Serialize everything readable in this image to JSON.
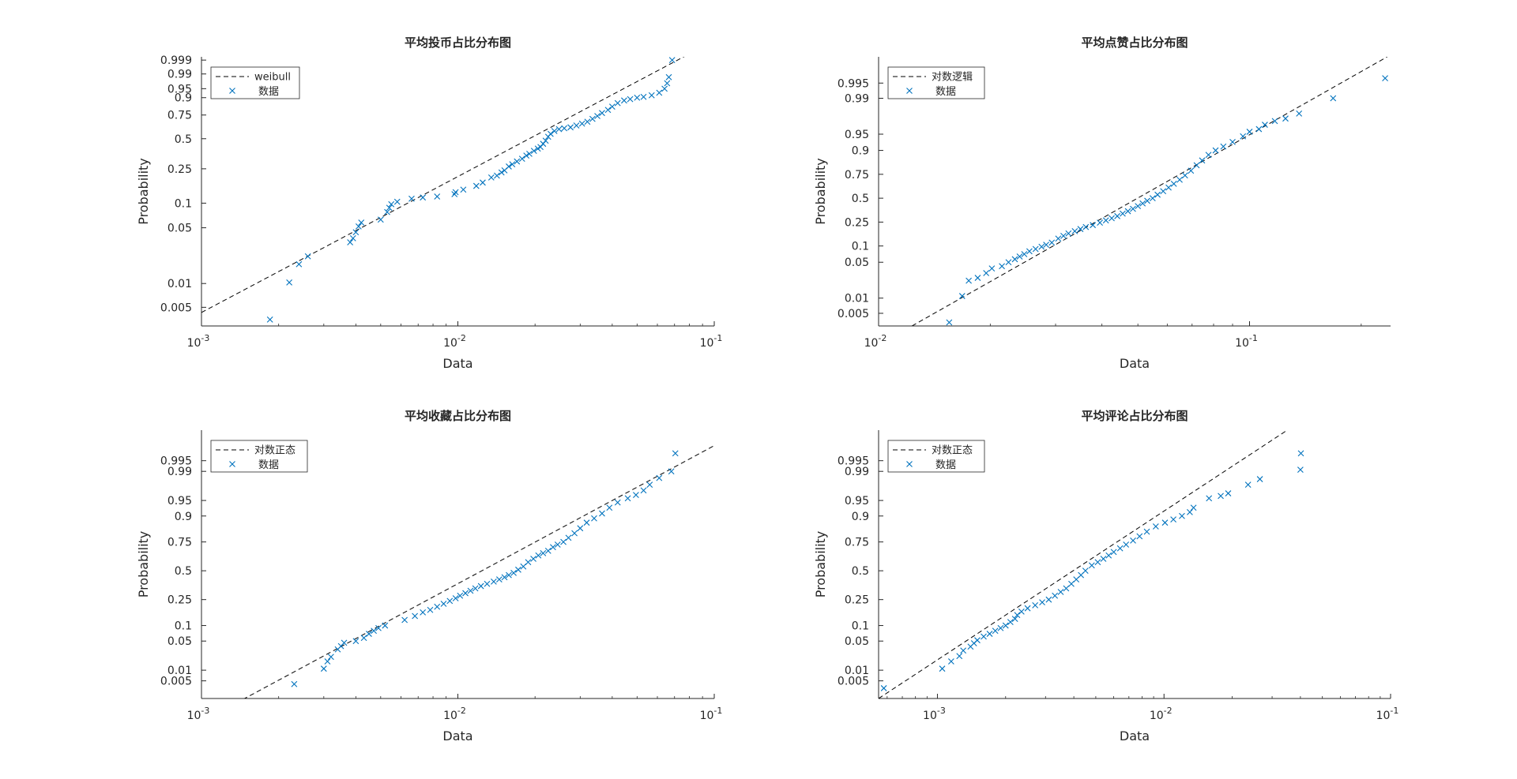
{
  "chart_data": [
    {
      "type": "scatter",
      "title": "平均投币占比分布图",
      "xlabel": "Data",
      "ylabel": "Probability",
      "xscale": "log",
      "xlim": [
        0.001,
        0.1
      ],
      "xticks": [
        {
          "v": 0.001,
          "base": "10",
          "exp": "-3"
        },
        {
          "v": 0.01,
          "base": "10",
          "exp": "-2"
        },
        {
          "v": 0.1,
          "base": "10",
          "exp": "-1"
        }
      ],
      "yscale": "weibull",
      "yticks": [
        "0.005",
        "0.01",
        "0.05",
        "0.1",
        "0.25",
        "0.5",
        "0.75",
        "0.9",
        "0.95",
        "0.99",
        "0.999"
      ],
      "legend": {
        "position": "top-left",
        "fit_label": "weibull",
        "data_label": "数据"
      },
      "fit_line": [
        [
          0.001,
          0.0043
        ],
        [
          0.085,
          0.9999
        ]
      ],
      "points": [
        [
          0.00185,
          0.0035
        ],
        [
          0.0022,
          0.0103
        ],
        [
          0.0024,
          0.0175
        ],
        [
          0.0026,
          0.022
        ],
        [
          0.0038,
          0.033
        ],
        [
          0.0039,
          0.037
        ],
        [
          0.004,
          0.044
        ],
        [
          0.0041,
          0.052
        ],
        [
          0.0042,
          0.058
        ],
        [
          0.005,
          0.063
        ],
        [
          0.0053,
          0.078
        ],
        [
          0.0054,
          0.088
        ],
        [
          0.0055,
          0.097
        ],
        [
          0.0058,
          0.104
        ],
        [
          0.0066,
          0.113
        ],
        [
          0.0073,
          0.117
        ],
        [
          0.0083,
          0.12
        ],
        [
          0.0097,
          0.128
        ],
        [
          0.0098,
          0.135
        ],
        [
          0.0105,
          0.145
        ],
        [
          0.0118,
          0.16
        ],
        [
          0.0125,
          0.175
        ],
        [
          0.0135,
          0.2
        ],
        [
          0.0142,
          0.21
        ],
        [
          0.0148,
          0.228
        ],
        [
          0.0152,
          0.24
        ],
        [
          0.0158,
          0.265
        ],
        [
          0.0163,
          0.28
        ],
        [
          0.017,
          0.3
        ],
        [
          0.0178,
          0.32
        ],
        [
          0.0185,
          0.345
        ],
        [
          0.019,
          0.36
        ],
        [
          0.0198,
          0.385
        ],
        [
          0.0205,
          0.405
        ],
        [
          0.021,
          0.42
        ],
        [
          0.0215,
          0.45
        ],
        [
          0.022,
          0.48
        ],
        [
          0.0225,
          0.52
        ],
        [
          0.023,
          0.55
        ],
        [
          0.0238,
          0.58
        ],
        [
          0.0248,
          0.6
        ],
        [
          0.026,
          0.61
        ],
        [
          0.0275,
          0.62
        ],
        [
          0.029,
          0.64
        ],
        [
          0.0305,
          0.66
        ],
        [
          0.032,
          0.68
        ],
        [
          0.0335,
          0.71
        ],
        [
          0.035,
          0.74
        ],
        [
          0.0365,
          0.77
        ],
        [
          0.0385,
          0.8
        ],
        [
          0.04,
          0.83
        ],
        [
          0.042,
          0.86
        ],
        [
          0.0445,
          0.88
        ],
        [
          0.047,
          0.89
        ],
        [
          0.05,
          0.9
        ],
        [
          0.053,
          0.905
        ],
        [
          0.057,
          0.915
        ],
        [
          0.061,
          0.93
        ],
        [
          0.064,
          0.95
        ],
        [
          0.0655,
          0.97
        ],
        [
          0.0665,
          0.985
        ],
        [
          0.0685,
          0.999
        ]
      ]
    },
    {
      "type": "scatter",
      "title": "平均点赞占比分布图",
      "xlabel": "Data",
      "ylabel": "Probability",
      "xscale": "log",
      "xlim": [
        0.01,
        0.24
      ],
      "xticks": [
        {
          "v": 0.01,
          "base": "10",
          "exp": "-2"
        },
        {
          "v": 0.1,
          "base": "10",
          "exp": "-1"
        }
      ],
      "yscale": "logistic",
      "yticks": [
        "0.005",
        "0.01",
        "0.05",
        "0.1",
        "0.25",
        "0.5",
        "0.75",
        "0.9",
        "0.95",
        "0.99",
        "0.995"
      ],
      "legend": {
        "position": "top-left",
        "fit_label": "对数逻辑",
        "data_label": "数据"
      },
      "fit_line": [
        [
          0.0123,
          0.0028
        ],
        [
          0.235,
          0.9985
        ]
      ],
      "points": [
        [
          0.0155,
          0.0033
        ],
        [
          0.0168,
          0.011
        ],
        [
          0.0175,
          0.022
        ],
        [
          0.0185,
          0.025
        ],
        [
          0.0195,
          0.031
        ],
        [
          0.0202,
          0.038
        ],
        [
          0.0215,
          0.042
        ],
        [
          0.0224,
          0.05
        ],
        [
          0.0233,
          0.057
        ],
        [
          0.024,
          0.064
        ],
        [
          0.0247,
          0.071
        ],
        [
          0.0255,
          0.08
        ],
        [
          0.0265,
          0.088
        ],
        [
          0.0275,
          0.097
        ],
        [
          0.0283,
          0.105
        ],
        [
          0.0293,
          0.115
        ],
        [
          0.0305,
          0.135
        ],
        [
          0.0315,
          0.15
        ],
        [
          0.0325,
          0.165
        ],
        [
          0.0338,
          0.18
        ],
        [
          0.035,
          0.195
        ],
        [
          0.0362,
          0.21
        ],
        [
          0.0378,
          0.225
        ],
        [
          0.0395,
          0.245
        ],
        [
          0.041,
          0.265
        ],
        [
          0.0425,
          0.285
        ],
        [
          0.044,
          0.305
        ],
        [
          0.0455,
          0.33
        ],
        [
          0.047,
          0.355
        ],
        [
          0.0485,
          0.38
        ],
        [
          0.05,
          0.41
        ],
        [
          0.0515,
          0.44
        ],
        [
          0.053,
          0.47
        ],
        [
          0.0548,
          0.5
        ],
        [
          0.0565,
          0.54
        ],
        [
          0.0585,
          0.58
        ],
        [
          0.0605,
          0.62
        ],
        [
          0.0625,
          0.66
        ],
        [
          0.0648,
          0.7
        ],
        [
          0.067,
          0.74
        ],
        [
          0.0695,
          0.78
        ],
        [
          0.072,
          0.82
        ],
        [
          0.0745,
          0.85
        ],
        [
          0.0775,
          0.88
        ],
        [
          0.081,
          0.9
        ],
        [
          0.085,
          0.915
        ],
        [
          0.09,
          0.93
        ],
        [
          0.096,
          0.945
        ],
        [
          0.1,
          0.955
        ],
        [
          0.106,
          0.96
        ],
        [
          0.11,
          0.967
        ],
        [
          0.117,
          0.972
        ],
        [
          0.125,
          0.975
        ],
        [
          0.136,
          0.98
        ],
        [
          0.168,
          0.99
        ],
        [
          0.232,
          0.996
        ]
      ]
    },
    {
      "type": "scatter",
      "title": "平均收藏占比分布图",
      "xlabel": "Data",
      "ylabel": "Probability",
      "xscale": "log",
      "xlim": [
        0.001,
        0.1
      ],
      "xticks": [
        {
          "v": 0.001,
          "base": "10",
          "exp": "-3"
        },
        {
          "v": 0.01,
          "base": "10",
          "exp": "-2"
        },
        {
          "v": 0.1,
          "base": "10",
          "exp": "-1"
        }
      ],
      "yscale": "normal",
      "yticks": [
        "0.005",
        "0.01",
        "0.05",
        "0.1",
        "0.25",
        "0.5",
        "0.75",
        "0.9",
        "0.95",
        "0.99",
        "0.995"
      ],
      "legend": {
        "position": "top-left",
        "fit_label": "对数正态",
        "data_label": "数据"
      },
      "fit_line": [
        [
          0.00145,
          0.0013
        ],
        [
          0.1,
          0.9983
        ]
      ],
      "points": [
        [
          0.0023,
          0.004
        ],
        [
          0.003,
          0.011
        ],
        [
          0.0031,
          0.017
        ],
        [
          0.0032,
          0.022
        ],
        [
          0.0034,
          0.033
        ],
        [
          0.0035,
          0.039
        ],
        [
          0.0036,
          0.046
        ],
        [
          0.004,
          0.05
        ],
        [
          0.0043,
          0.058
        ],
        [
          0.0045,
          0.07
        ],
        [
          0.0047,
          0.08
        ],
        [
          0.0049,
          0.09
        ],
        [
          0.0052,
          0.1
        ],
        [
          0.0062,
          0.125
        ],
        [
          0.0068,
          0.145
        ],
        [
          0.0073,
          0.165
        ],
        [
          0.0078,
          0.18
        ],
        [
          0.0083,
          0.2
        ],
        [
          0.0088,
          0.22
        ],
        [
          0.0093,
          0.24
        ],
        [
          0.0098,
          0.26
        ],
        [
          0.0102,
          0.28
        ],
        [
          0.0107,
          0.3
        ],
        [
          0.0112,
          0.32
        ],
        [
          0.0117,
          0.34
        ],
        [
          0.0123,
          0.36
        ],
        [
          0.013,
          0.38
        ],
        [
          0.0138,
          0.4
        ],
        [
          0.0145,
          0.42
        ],
        [
          0.0152,
          0.44
        ],
        [
          0.0158,
          0.46
        ],
        [
          0.0165,
          0.48
        ],
        [
          0.0172,
          0.51
        ],
        [
          0.018,
          0.54
        ],
        [
          0.0188,
          0.58
        ],
        [
          0.0197,
          0.61
        ],
        [
          0.0206,
          0.64
        ],
        [
          0.0215,
          0.66
        ],
        [
          0.0225,
          0.68
        ],
        [
          0.0235,
          0.71
        ],
        [
          0.0245,
          0.73
        ],
        [
          0.0258,
          0.75
        ],
        [
          0.027,
          0.78
        ],
        [
          0.0285,
          0.81
        ],
        [
          0.03,
          0.84
        ],
        [
          0.0318,
          0.87
        ],
        [
          0.034,
          0.89
        ],
        [
          0.0365,
          0.91
        ],
        [
          0.039,
          0.93
        ],
        [
          0.042,
          0.945
        ],
        [
          0.046,
          0.955
        ],
        [
          0.0495,
          0.962
        ],
        [
          0.053,
          0.97
        ],
        [
          0.056,
          0.978
        ],
        [
          0.061,
          0.985
        ],
        [
          0.068,
          0.99
        ],
        [
          0.0705,
          0.997
        ]
      ]
    },
    {
      "type": "scatter",
      "title": "平均评论占比分布图",
      "xlabel": "Data",
      "ylabel": "Probability",
      "xscale": "log",
      "xlim": [
        0.00055,
        0.1
      ],
      "xticks": [
        {
          "v": 0.001,
          "base": "10",
          "exp": "-3"
        },
        {
          "v": 0.01,
          "base": "10",
          "exp": "-2"
        },
        {
          "v": 0.1,
          "base": "10",
          "exp": "-1"
        }
      ],
      "yscale": "normal",
      "yticks": [
        "0.005",
        "0.01",
        "0.05",
        "0.1",
        "0.25",
        "0.5",
        "0.75",
        "0.9",
        "0.95",
        "0.99",
        "0.995"
      ],
      "legend": {
        "position": "top-left",
        "fit_label": "对数正态",
        "data_label": "数据"
      },
      "fit_line": [
        [
          0.00055,
          0.0014
        ],
        [
          0.035,
          0.9995
        ]
      ],
      "points": [
        [
          0.00058,
          0.003
        ],
        [
          0.00105,
          0.011
        ],
        [
          0.00115,
          0.017
        ],
        [
          0.00125,
          0.023
        ],
        [
          0.0013,
          0.031
        ],
        [
          0.0014,
          0.038
        ],
        [
          0.00145,
          0.045
        ],
        [
          0.0015,
          0.052
        ],
        [
          0.0016,
          0.062
        ],
        [
          0.0017,
          0.07
        ],
        [
          0.0018,
          0.08
        ],
        [
          0.0019,
          0.09
        ],
        [
          0.002,
          0.1
        ],
        [
          0.0021,
          0.115
        ],
        [
          0.0022,
          0.13
        ],
        [
          0.00225,
          0.15
        ],
        [
          0.00235,
          0.17
        ],
        [
          0.0025,
          0.19
        ],
        [
          0.0027,
          0.21
        ],
        [
          0.0029,
          0.23
        ],
        [
          0.0031,
          0.25
        ],
        [
          0.0033,
          0.28
        ],
        [
          0.0035,
          0.31
        ],
        [
          0.0037,
          0.34
        ],
        [
          0.0039,
          0.38
        ],
        [
          0.0041,
          0.42
        ],
        [
          0.0043,
          0.46
        ],
        [
          0.0045,
          0.5
        ],
        [
          0.0048,
          0.55
        ],
        [
          0.0051,
          0.58
        ],
        [
          0.0054,
          0.61
        ],
        [
          0.0057,
          0.64
        ],
        [
          0.006,
          0.67
        ],
        [
          0.0064,
          0.7
        ],
        [
          0.0068,
          0.73
        ],
        [
          0.0073,
          0.76
        ],
        [
          0.0078,
          0.79
        ],
        [
          0.0084,
          0.82
        ],
        [
          0.0092,
          0.85
        ],
        [
          0.0101,
          0.87
        ],
        [
          0.011,
          0.885
        ],
        [
          0.012,
          0.9
        ],
        [
          0.013,
          0.915
        ],
        [
          0.0135,
          0.93
        ],
        [
          0.0158,
          0.955
        ],
        [
          0.0178,
          0.96
        ],
        [
          0.0192,
          0.965
        ],
        [
          0.0235,
          0.978
        ],
        [
          0.0265,
          0.984
        ],
        [
          0.04,
          0.991
        ],
        [
          0.0402,
          0.997
        ]
      ]
    }
  ]
}
